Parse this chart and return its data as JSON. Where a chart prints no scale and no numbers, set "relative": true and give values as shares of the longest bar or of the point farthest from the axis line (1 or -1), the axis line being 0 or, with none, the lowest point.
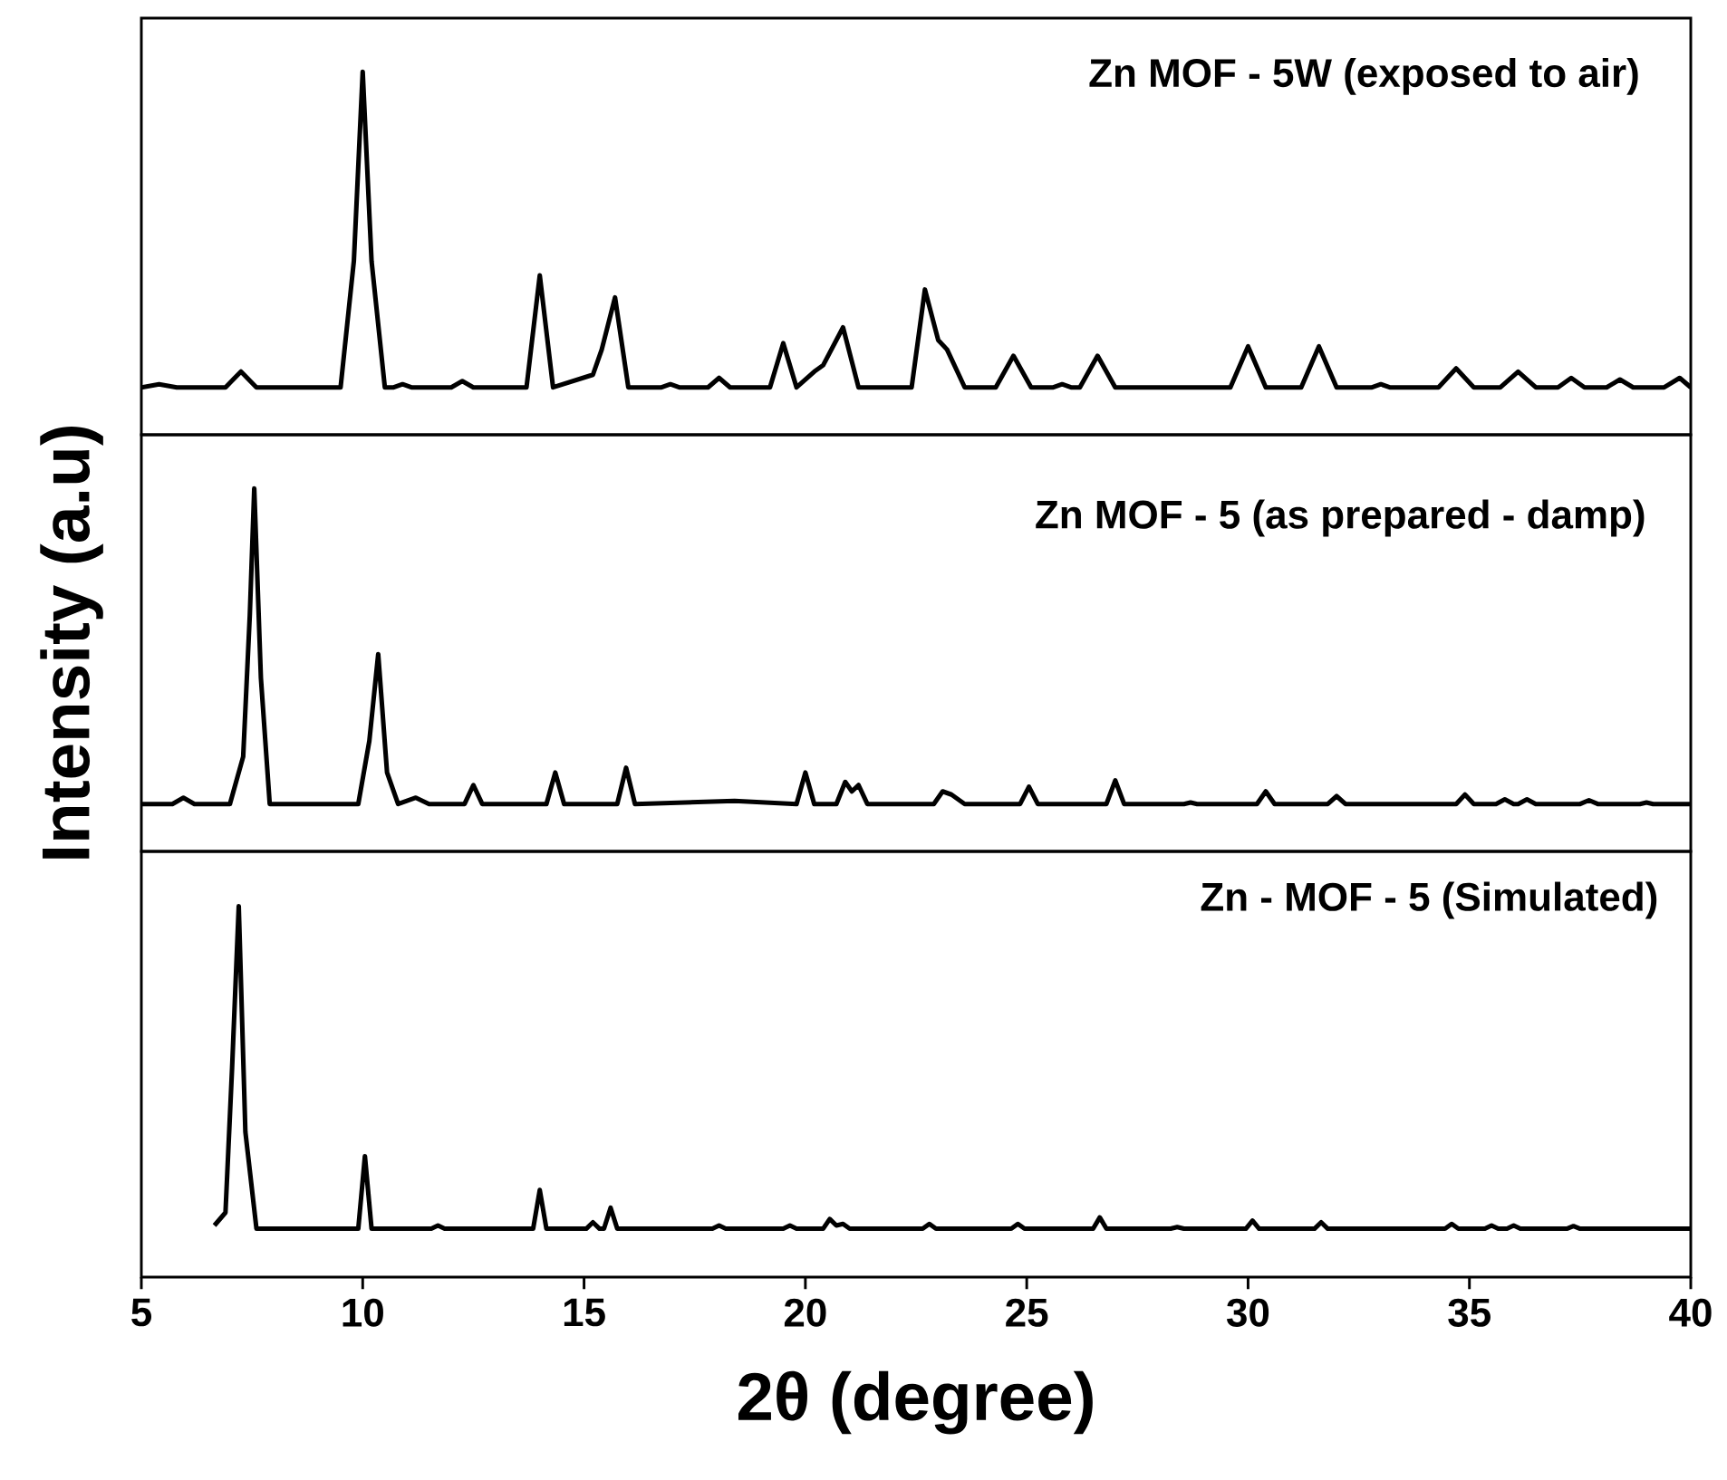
{
  "chart_data": [
    {
      "type": "line",
      "relative": true,
      "color": "#000000",
      "xlim": [
        5,
        40
      ],
      "tick_labels": false,
      "annotations": [
        "Zn MOF - 5W (exposed to air)"
      ],
      "x": [
        5.0,
        5.4,
        5.8,
        6.9,
        7.25,
        7.6,
        9.5,
        9.8,
        10.0,
        10.2,
        10.5,
        10.7,
        10.9,
        11.1,
        12.0,
        12.25,
        12.5,
        13.7,
        14.0,
        14.3,
        15.2,
        15.4,
        15.7,
        16.0,
        16.75,
        16.95,
        17.15,
        17.8,
        18.05,
        18.3,
        19.2,
        19.5,
        19.8,
        20.2,
        20.4,
        20.85,
        21.2,
        22.4,
        22.7,
        23.0,
        23.2,
        23.6,
        24.3,
        24.7,
        25.1,
        25.6,
        25.8,
        26.0,
        26.2,
        26.6,
        27.0,
        29.6,
        30.0,
        30.4,
        31.2,
        31.6,
        32.0,
        32.8,
        33.0,
        33.2,
        34.3,
        34.7,
        35.1,
        35.7,
        36.1,
        36.5,
        37.0,
        37.3,
        37.6,
        38.1,
        38.4,
        38.7,
        39.4,
        39.75,
        40.0
      ],
      "values": [
        0,
        0.01,
        0,
        0,
        0.05,
        0,
        0,
        0.4,
        1.0,
        0.4,
        0,
        0,
        0.01,
        0,
        0,
        0.02,
        0,
        0,
        0.355,
        0,
        0.04,
        0.12,
        0.285,
        0,
        0,
        0.01,
        0,
        0,
        0.03,
        0,
        0,
        0.14,
        0,
        0.05,
        0.07,
        0.19,
        0,
        0,
        0.31,
        0.15,
        0.12,
        0,
        0,
        0.1,
        0,
        0,
        0.01,
        0,
        0,
        0.1,
        0,
        0,
        0.13,
        0,
        0,
        0.13,
        0,
        0,
        0.01,
        0,
        0,
        0.06,
        0,
        0,
        0.05,
        0,
        0,
        0.03,
        0,
        0,
        0.025,
        0,
        0,
        0.03,
        0
      ]
    },
    {
      "type": "line",
      "relative": true,
      "color": "#000000",
      "xlim": [
        5,
        40
      ],
      "tick_labels": false,
      "ylabel": "Intensity (a.u)",
      "annotations": [
        "Zn MOF - 5 (as prepared - damp)"
      ],
      "x": [
        5.0,
        5.7,
        5.95,
        6.2,
        7.0,
        7.3,
        7.45,
        7.55,
        7.7,
        7.9,
        9.9,
        10.15,
        10.35,
        10.55,
        10.8,
        11.2,
        11.5,
        12.3,
        12.5,
        12.7,
        14.15,
        14.35,
        14.55,
        15.75,
        15.95,
        16.15,
        18.4,
        19.8,
        20.0,
        20.2,
        20.7,
        20.9,
        21.05,
        21.2,
        21.4,
        22.9,
        23.1,
        23.3,
        23.6,
        24.85,
        25.05,
        25.25,
        26.8,
        27.0,
        27.2,
        28.55,
        28.7,
        28.85,
        30.2,
        30.4,
        30.6,
        31.8,
        32.0,
        32.2,
        34.7,
        34.9,
        35.1,
        35.6,
        35.8,
        36.0,
        36.1,
        36.3,
        36.5,
        37.5,
        37.7,
        37.9,
        38.85,
        39.0,
        39.15,
        40.0
      ],
      "values": [
        0,
        0,
        0.02,
        0,
        0,
        0.15,
        0.6,
        1.0,
        0.4,
        0,
        0,
        0.2,
        0.475,
        0.1,
        0,
        0.02,
        0,
        0,
        0.06,
        0,
        0,
        0.1,
        0,
        0,
        0.115,
        0,
        0.01,
        0,
        0.1,
        0,
        0,
        0.07,
        0.04,
        0.06,
        0,
        0,
        0.04,
        0.03,
        0,
        0,
        0.055,
        0,
        0,
        0.075,
        0,
        0,
        0.005,
        0,
        0,
        0.04,
        0,
        0,
        0.025,
        0,
        0,
        0.03,
        0,
        0,
        0.015,
        0,
        0,
        0.015,
        0,
        0,
        0.012,
        0,
        0,
        0.005,
        0,
        0
      ]
    },
    {
      "type": "line",
      "relative": true,
      "color": "#000000",
      "xlim": [
        5,
        40
      ],
      "xticks": [
        5,
        10,
        15,
        20,
        25,
        30,
        35,
        40
      ],
      "tick_labels": "x",
      "xlabel": "2θ (degree)",
      "annotations": [
        "Zn - MOF - 5 (Simulated)"
      ],
      "x": [
        6.65,
        6.9,
        7.05,
        7.2,
        7.35,
        7.6,
        9.9,
        10.05,
        10.2,
        11.55,
        11.7,
        11.85,
        13.85,
        14.0,
        14.15,
        15.05,
        15.2,
        15.35,
        15.45,
        15.6,
        15.75,
        17.9,
        18.05,
        18.2,
        19.5,
        19.65,
        19.8,
        20.4,
        20.55,
        20.7,
        20.85,
        21.0,
        22.65,
        22.8,
        22.95,
        24.65,
        24.8,
        24.95,
        26.5,
        26.65,
        26.8,
        28.25,
        28.4,
        28.55,
        29.95,
        30.1,
        30.25,
        31.5,
        31.65,
        31.8,
        34.45,
        34.6,
        34.75,
        35.35,
        35.5,
        35.65,
        35.85,
        36.0,
        36.15,
        37.2,
        37.35,
        37.5,
        40.0
      ],
      "values": [
        0.01,
        0.05,
        0.5,
        1.0,
        0.3,
        0,
        0,
        0.225,
        0,
        0,
        0.01,
        0,
        0,
        0.12,
        0,
        0,
        0.02,
        0,
        0,
        0.065,
        0,
        0,
        0.01,
        0,
        0,
        0.01,
        0,
        0,
        0.03,
        0.01,
        0.015,
        0,
        0,
        0.015,
        0,
        0,
        0.015,
        0,
        0,
        0.035,
        0,
        0,
        0.005,
        0,
        0,
        0.025,
        0,
        0,
        0.02,
        0,
        0,
        0.015,
        0,
        0,
        0.01,
        0,
        0,
        0.01,
        0,
        0,
        0.008,
        0,
        0
      ]
    }
  ]
}
